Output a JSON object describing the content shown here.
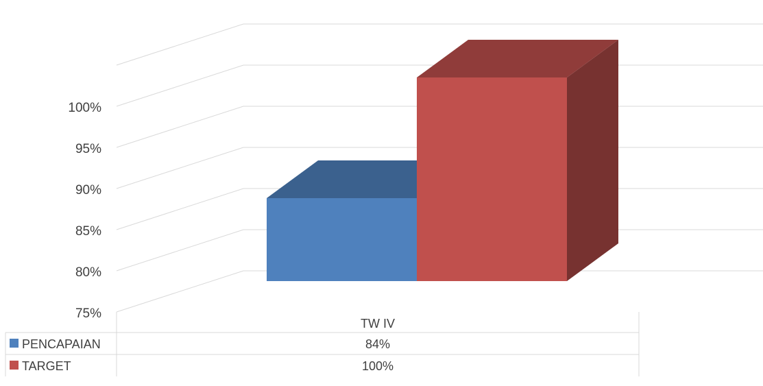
{
  "chart_data": {
    "type": "bar",
    "style": "3d-clustered-column with data table",
    "categories": [
      "TW IV"
    ],
    "series": [
      {
        "name": "PENCAPAIAN",
        "values": [
          0.84
        ],
        "label": "84%",
        "color": "#4F81BD"
      },
      {
        "name": "TARGET",
        "values": [
          1.0
        ],
        "label": "100%",
        "color": "#C0504D"
      }
    ],
    "yticks": [
      "75%",
      "80%",
      "85%",
      "90%",
      "95%",
      "100%"
    ],
    "ylim": [
      0.75,
      1.0
    ],
    "grid": true,
    "legend": "data-table"
  }
}
